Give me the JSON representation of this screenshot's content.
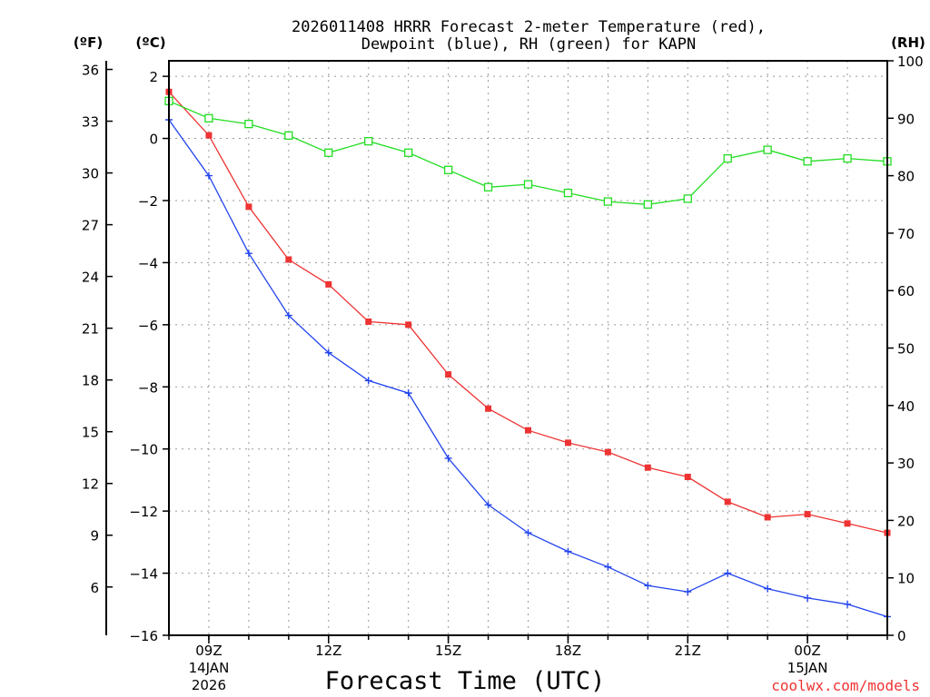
{
  "chart_data": {
    "type": "line",
    "title_line1": "2026011408 HRRR Forecast 2-meter Temperature (red),",
    "title_line2": "Dewpoint (blue), RH (green) for KAPN",
    "xlabel": "Forecast Time (UTC)",
    "credit": "coolwx.com/models",
    "units": {
      "fahrenheit": "(ºF)",
      "celsius": "(ºC)",
      "rh": "(RH)"
    },
    "x_hours": [
      8,
      9,
      10,
      11,
      12,
      13,
      14,
      15,
      16,
      17,
      18,
      19,
      20,
      21,
      22,
      23,
      24,
      25,
      26
    ],
    "xlim": [
      8,
      26
    ],
    "x_ticks": [
      {
        "hour": 9,
        "label": "09Z",
        "sub1": "14JAN",
        "sub2": "2026"
      },
      {
        "hour": 12,
        "label": "12Z",
        "sub1": "",
        "sub2": ""
      },
      {
        "hour": 15,
        "label": "15Z",
        "sub1": "",
        "sub2": ""
      },
      {
        "hour": 18,
        "label": "18Z",
        "sub1": "",
        "sub2": ""
      },
      {
        "hour": 21,
        "label": "21Z",
        "sub1": "",
        "sub2": ""
      },
      {
        "hour": 24,
        "label": "00Z",
        "sub1": "15JAN",
        "sub2": ""
      }
    ],
    "celsius_axis": {
      "ylim": [
        -16,
        2.5
      ],
      "ticks": [
        2,
        0,
        -2,
        -4,
        -6,
        -8,
        -10,
        -12,
        -14,
        -16
      ]
    },
    "fahrenheit_axis": {
      "ticks": [
        36,
        33,
        30,
        27,
        24,
        21,
        18,
        15,
        12,
        9,
        6
      ]
    },
    "rh_axis": {
      "ylim": [
        0,
        100
      ],
      "ticks": [
        100,
        90,
        80,
        70,
        60,
        50,
        40,
        30,
        20,
        10,
        0
      ]
    },
    "series": [
      {
        "name": "Temperature",
        "axis": "celsius",
        "color": "#ee3333",
        "marker": "filled-square",
        "values": [
          1.5,
          0.1,
          -2.2,
          -3.9,
          -4.7,
          -5.9,
          -6.0,
          -7.6,
          -8.7,
          -9.4,
          -9.8,
          -10.1,
          -10.6,
          -10.9,
          -11.7,
          -12.2,
          -12.1,
          -12.4,
          -12.7
        ]
      },
      {
        "name": "Dewpoint",
        "axis": "celsius",
        "color": "#2244ee",
        "marker": "plus",
        "values": [
          0.6,
          -1.2,
          -3.7,
          -5.7,
          -6.9,
          -7.8,
          -8.2,
          -10.3,
          -11.8,
          -12.7,
          -13.3,
          -13.8,
          -14.4,
          -14.6,
          -14.0,
          -14.5,
          -14.8,
          -15.0,
          -15.4
        ]
      },
      {
        "name": "RH",
        "axis": "rh",
        "color": "#22dd22",
        "marker": "open-square",
        "values": [
          93,
          90,
          89,
          87,
          84,
          86,
          84,
          81,
          78,
          78.5,
          77,
          75.5,
          75,
          76,
          83,
          84.5,
          82.5,
          83,
          82.5
        ]
      }
    ]
  }
}
